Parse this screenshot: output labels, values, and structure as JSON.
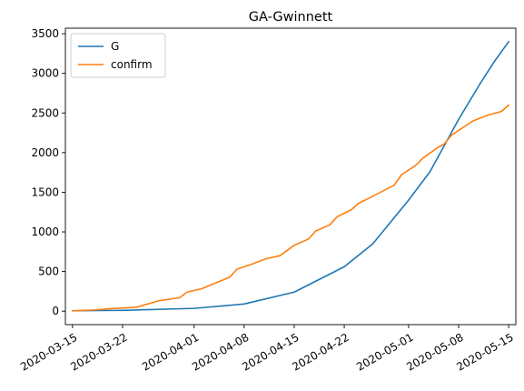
{
  "chart_data": {
    "type": "line",
    "title": "GA-Gwinnett",
    "xlabel": "",
    "ylabel": "",
    "x_axis_type": "date",
    "xlim": [
      "2020-03-14",
      "2020-05-16"
    ],
    "ylim": [
      -170,
      3570
    ],
    "grid": false,
    "legend_placement": "top-left",
    "x_ticks": [
      "2020-03-15",
      "2020-03-22",
      "2020-04-01",
      "2020-04-08",
      "2020-04-15",
      "2020-04-22",
      "2020-05-01",
      "2020-05-08",
      "2020-05-15"
    ],
    "y_ticks": [
      0,
      500,
      1000,
      1500,
      2000,
      2500,
      3000,
      3500
    ],
    "series": [
      {
        "name": "G",
        "color": "#1f77b4",
        "points": [
          [
            "2020-03-15",
            5
          ],
          [
            "2020-03-22",
            10
          ],
          [
            "2020-04-01",
            35
          ],
          [
            "2020-04-08",
            90
          ],
          [
            "2020-04-15",
            240
          ],
          [
            "2020-04-22",
            560
          ],
          [
            "2020-04-26",
            850
          ],
          [
            "2020-05-01",
            1400
          ],
          [
            "2020-05-04",
            1760
          ],
          [
            "2020-05-08",
            2420
          ],
          [
            "2020-05-11",
            2870
          ],
          [
            "2020-05-13",
            3150
          ],
          [
            "2020-05-15",
            3400
          ]
        ]
      },
      {
        "name": "confirm",
        "color": "#ff7f0e",
        "points": [
          [
            "2020-03-15",
            5
          ],
          [
            "2020-03-18",
            15
          ],
          [
            "2020-03-20",
            30
          ],
          [
            "2020-03-24",
            50
          ],
          [
            "2020-03-27",
            130
          ],
          [
            "2020-03-30",
            170
          ],
          [
            "2020-03-31",
            240
          ],
          [
            "2020-04-02",
            280
          ],
          [
            "2020-04-06",
            430
          ],
          [
            "2020-04-07",
            530
          ],
          [
            "2020-04-09",
            590
          ],
          [
            "2020-04-11",
            660
          ],
          [
            "2020-04-13",
            700
          ],
          [
            "2020-04-15",
            830
          ],
          [
            "2020-04-17",
            910
          ],
          [
            "2020-04-18",
            1010
          ],
          [
            "2020-04-20",
            1090
          ],
          [
            "2020-04-21",
            1190
          ],
          [
            "2020-04-23",
            1280
          ],
          [
            "2020-04-24",
            1360
          ],
          [
            "2020-04-26",
            1450
          ],
          [
            "2020-04-29",
            1590
          ],
          [
            "2020-04-30",
            1720
          ],
          [
            "2020-05-02",
            1840
          ],
          [
            "2020-05-03",
            1930
          ],
          [
            "2020-05-05",
            2060
          ],
          [
            "2020-05-06",
            2110
          ],
          [
            "2020-05-07",
            2220
          ],
          [
            "2020-05-08",
            2280
          ],
          [
            "2020-05-10",
            2400
          ],
          [
            "2020-05-12",
            2470
          ],
          [
            "2020-05-14",
            2520
          ],
          [
            "2020-05-15",
            2600
          ]
        ]
      }
    ]
  }
}
